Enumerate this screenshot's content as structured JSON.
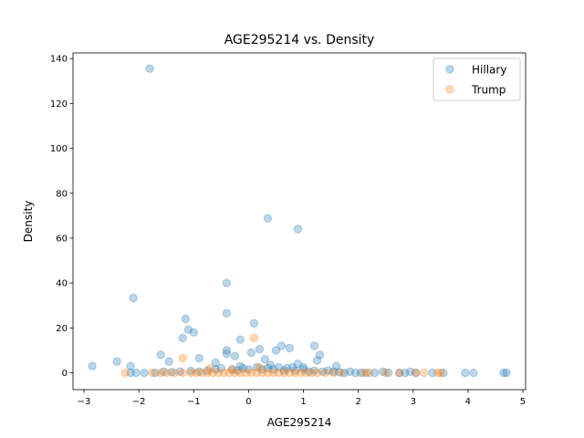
{
  "chart_data": {
    "type": "scatter",
    "title": "AGE295214 vs. Density",
    "xlabel": "AGE295214",
    "ylabel": "Density",
    "xlim": [
      -3.2,
      5.05
    ],
    "ylim": [
      -7.5,
      142.5
    ],
    "xticks": [
      -3,
      -2,
      -1,
      0,
      1,
      2,
      3,
      4,
      5
    ],
    "yticks": [
      0,
      20,
      40,
      60,
      80,
      100,
      120,
      140
    ],
    "grid": false,
    "legend_position": "top-right",
    "series": [
      {
        "name": "Hillary",
        "color": "#1f77b4",
        "points": [
          [
            -1.8,
            135.5
          ],
          [
            0.35,
            68.8
          ],
          [
            0.9,
            64.0
          ],
          [
            -2.1,
            33.3
          ],
          [
            -0.4,
            40.0
          ],
          [
            -0.4,
            26.5
          ],
          [
            -1.15,
            24.0
          ],
          [
            0.1,
            22.0
          ],
          [
            -1.1,
            19.2
          ],
          [
            -1.0,
            18.0
          ],
          [
            -1.2,
            15.5
          ],
          [
            -0.15,
            14.8
          ],
          [
            1.2,
            12.0
          ],
          [
            0.6,
            12.0
          ],
          [
            0.75,
            11.0
          ],
          [
            0.2,
            10.5
          ],
          [
            0.5,
            10.0
          ],
          [
            -0.4,
            10.0
          ],
          [
            -0.4,
            8.5
          ],
          [
            -1.6,
            8.0
          ],
          [
            0.05,
            9.0
          ],
          [
            -0.25,
            7.5
          ],
          [
            1.3,
            8.0
          ],
          [
            -0.9,
            6.5
          ],
          [
            -1.45,
            5.0
          ],
          [
            -2.4,
            5.0
          ],
          [
            1.25,
            5.5
          ],
          [
            0.3,
            6.0
          ],
          [
            -0.6,
            4.5
          ],
          [
            0.9,
            4.0
          ],
          [
            -2.85,
            3.0
          ],
          [
            -2.15,
            3.0
          ],
          [
            1.6,
            3.0
          ],
          [
            0.4,
            3.5
          ],
          [
            0.8,
            2.5
          ],
          [
            -0.15,
            3.0
          ],
          [
            1.0,
            2.5
          ],
          [
            -2.15,
            0.0
          ],
          [
            -2.05,
            0.0
          ],
          [
            -1.9,
            0.0
          ],
          [
            -1.7,
            0.0
          ],
          [
            -1.55,
            0.5
          ],
          [
            -1.4,
            0.3
          ],
          [
            -1.25,
            0.5
          ],
          [
            -1.05,
            0.8
          ],
          [
            -0.9,
            0.5
          ],
          [
            -0.75,
            1.0
          ],
          [
            -0.6,
            1.5
          ],
          [
            -0.5,
            2.0
          ],
          [
            -0.3,
            1.5
          ],
          [
            -0.2,
            1.0
          ],
          [
            -0.1,
            2.0
          ],
          [
            0.0,
            1.5
          ],
          [
            0.15,
            2.5
          ],
          [
            0.25,
            1.5
          ],
          [
            0.35,
            2.0
          ],
          [
            0.45,
            1.5
          ],
          [
            0.55,
            2.5
          ],
          [
            0.65,
            1.0
          ],
          [
            0.7,
            2.0
          ],
          [
            0.85,
            1.0
          ],
          [
            1.0,
            1.5
          ],
          [
            1.1,
            0.5
          ],
          [
            1.2,
            1.0
          ],
          [
            1.35,
            0.5
          ],
          [
            1.45,
            1.0
          ],
          [
            1.55,
            0.5
          ],
          [
            1.65,
            0.3
          ],
          [
            1.75,
            0.0
          ],
          [
            1.85,
            0.5
          ],
          [
            1.95,
            0.0
          ],
          [
            2.05,
            0.0
          ],
          [
            2.15,
            0.0
          ],
          [
            2.3,
            0.0
          ],
          [
            2.45,
            0.5
          ],
          [
            2.55,
            0.0
          ],
          [
            2.75,
            0.0
          ],
          [
            2.85,
            0.0
          ],
          [
            2.95,
            0.5
          ],
          [
            3.05,
            0.0
          ],
          [
            3.35,
            0.0
          ],
          [
            3.55,
            0.0
          ],
          [
            3.95,
            0.0
          ],
          [
            4.1,
            0.0
          ],
          [
            4.65,
            0.0
          ],
          [
            4.7,
            0.0
          ]
        ]
      },
      {
        "name": "Trump",
        "color": "#ff7f0e",
        "points": [
          [
            0.1,
            15.5
          ],
          [
            -1.2,
            6.5
          ],
          [
            -0.7,
            2.0
          ],
          [
            0.2,
            2.5
          ],
          [
            -0.3,
            1.5
          ],
          [
            -2.25,
            0.0
          ],
          [
            -1.75,
            0.0
          ],
          [
            -1.6,
            0.0
          ],
          [
            -1.5,
            0.0
          ],
          [
            -1.35,
            0.0
          ],
          [
            -1.2,
            0.0
          ],
          [
            -1.05,
            0.0
          ],
          [
            -0.95,
            0.0
          ],
          [
            -0.85,
            0.0
          ],
          [
            -0.75,
            0.0
          ],
          [
            -0.65,
            0.0
          ],
          [
            -0.55,
            0.0
          ],
          [
            -0.45,
            0.0
          ],
          [
            -0.35,
            0.0
          ],
          [
            -0.25,
            0.0
          ],
          [
            -0.15,
            0.0
          ],
          [
            -0.05,
            0.0
          ],
          [
            0.05,
            0.0
          ],
          [
            0.15,
            0.0
          ],
          [
            0.25,
            0.0
          ],
          [
            0.35,
            0.0
          ],
          [
            0.45,
            0.0
          ],
          [
            0.55,
            0.0
          ],
          [
            0.65,
            0.0
          ],
          [
            0.75,
            0.0
          ],
          [
            0.85,
            0.0
          ],
          [
            0.95,
            0.0
          ],
          [
            1.05,
            0.0
          ],
          [
            1.15,
            0.0
          ],
          [
            1.25,
            0.0
          ],
          [
            1.4,
            0.0
          ],
          [
            1.55,
            0.0
          ],
          [
            1.7,
            0.0
          ],
          [
            2.1,
            0.0
          ],
          [
            2.2,
            0.0
          ],
          [
            2.5,
            0.0
          ],
          [
            2.75,
            0.0
          ],
          [
            3.05,
            0.0
          ],
          [
            3.2,
            0.0
          ],
          [
            3.45,
            0.0
          ],
          [
            3.5,
            0.0
          ]
        ]
      }
    ]
  }
}
